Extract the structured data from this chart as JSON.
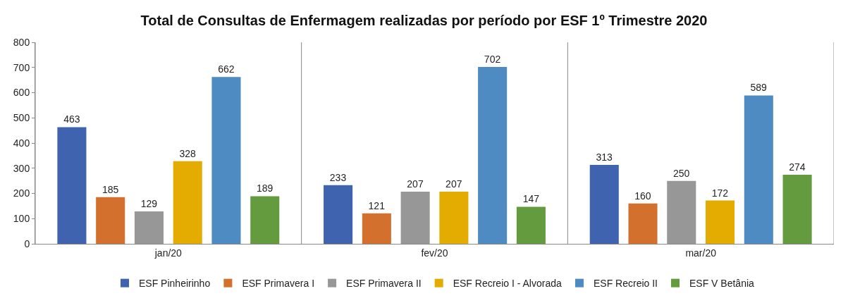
{
  "chart_data": {
    "type": "bar",
    "title": "Total de Consultas de Enfermagem realizadas por período por ESF 1º Trimestre 2020",
    "categories": [
      "jan/20",
      "fev/20",
      "mar/20"
    ],
    "series": [
      {
        "name": "ESF Pinheirinho",
        "color": "#3f63ae",
        "values": [
          463,
          233,
          313
        ]
      },
      {
        "name": "ESF Primavera I",
        "color": "#d4702e",
        "values": [
          185,
          121,
          160
        ]
      },
      {
        "name": "ESF Primavera II",
        "color": "#979797",
        "values": [
          129,
          207,
          250
        ]
      },
      {
        "name": "ESF Recreio I - Alvorada",
        "color": "#e4ab00",
        "values": [
          328,
          207,
          172
        ]
      },
      {
        "name": "ESF Recreio II",
        "color": "#4e8bc2",
        "values": [
          662,
          702,
          589
        ]
      },
      {
        "name": "ESF V Betânia",
        "color": "#649b3f",
        "values": [
          189,
          147,
          274
        ]
      }
    ],
    "ylim": [
      0,
      800
    ],
    "yticks": [
      0,
      100,
      200,
      300,
      400,
      500,
      600,
      700,
      800
    ],
    "grid": "x",
    "legend": "bottom",
    "data_labels": true
  }
}
